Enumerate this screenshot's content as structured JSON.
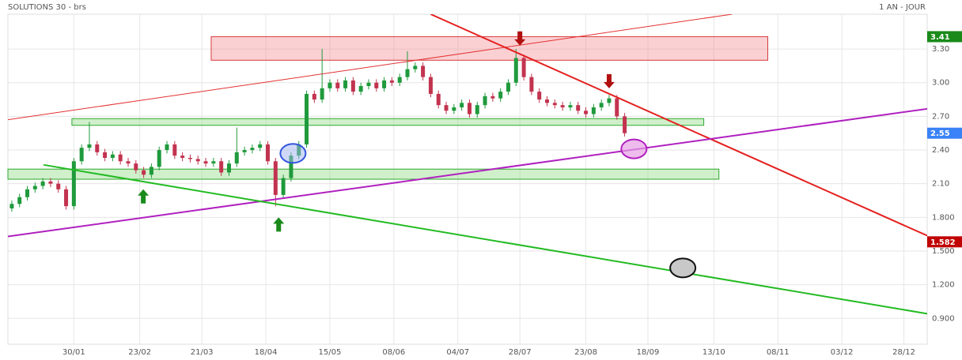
{
  "chart_data": {
    "type": "candlestick",
    "title": "SOLUTIONS 30 - brs",
    "period": "1 AN - JOUR",
    "grid": true,
    "colors": {
      "up": "#1f9a3c",
      "down": "#c2334f"
    },
    "xlim": [
      0,
      237
    ],
    "xticks": [
      {
        "value": 17,
        "label": "30/01"
      },
      {
        "value": 34,
        "label": "23/02"
      },
      {
        "value": 50,
        "label": "21/03"
      },
      {
        "value": 66.5,
        "label": "18/04"
      },
      {
        "value": 83,
        "label": "15/05"
      },
      {
        "value": 99.5,
        "label": "08/06"
      },
      {
        "value": 116,
        "label": "04/07"
      },
      {
        "value": 132,
        "label": "28/07"
      },
      {
        "value": 149,
        "label": "23/08"
      },
      {
        "value": 165,
        "label": "18/09"
      },
      {
        "value": 182,
        "label": "13/10"
      },
      {
        "value": 198.5,
        "label": "08/11"
      },
      {
        "value": 215,
        "label": "03/12"
      },
      {
        "value": 231,
        "label": "28/12"
      }
    ],
    "ylim": [
      0.67,
      3.61
    ],
    "yticks": [
      {
        "value": 3.3,
        "label": "3.30"
      },
      {
        "value": 3.0,
        "label": "3.00"
      },
      {
        "value": 2.7,
        "label": "2.70"
      },
      {
        "value": 2.4,
        "label": "2.40"
      },
      {
        "value": 2.1,
        "label": "2.10"
      },
      {
        "value": 1.8,
        "label": "1.800"
      },
      {
        "value": 1.5,
        "label": "1.500"
      },
      {
        "value": 1.2,
        "label": "1.200"
      },
      {
        "value": 0.9,
        "label": "0.900"
      }
    ],
    "x": [
      1,
      3,
      5,
      7,
      9,
      11,
      13,
      15,
      17,
      19,
      21,
      23,
      25,
      27,
      29,
      31,
      33,
      35,
      37,
      39,
      41,
      43,
      45,
      47,
      49,
      51,
      53,
      55,
      57,
      59,
      61,
      63,
      65,
      67,
      69,
      71,
      73,
      75,
      77,
      79,
      81,
      83,
      85,
      87,
      89,
      91,
      93,
      95,
      97,
      99,
      101,
      103,
      105,
      107,
      109,
      111,
      113,
      115,
      117,
      119,
      121,
      123,
      125,
      127,
      129,
      131,
      133,
      135,
      137,
      139,
      141,
      143,
      145,
      147,
      149,
      151,
      153,
      155,
      157,
      159
    ],
    "open": [
      1.88,
      1.92,
      1.98,
      2.05,
      2.08,
      2.12,
      2.1,
      2.05,
      1.9,
      2.3,
      2.42,
      2.45,
      2.38,
      2.33,
      2.36,
      2.3,
      2.28,
      2.22,
      2.18,
      2.25,
      2.4,
      2.45,
      2.35,
      2.33,
      2.32,
      2.3,
      2.28,
      2.3,
      2.2,
      2.28,
      2.38,
      2.4,
      2.42,
      2.45,
      2.3,
      2.0,
      2.15,
      2.35,
      2.45,
      2.9,
      2.85,
      2.95,
      3.0,
      2.95,
      3.02,
      2.92,
      2.97,
      3.0,
      2.95,
      3.02,
      3.0,
      3.05,
      3.12,
      3.15,
      3.05,
      2.9,
      2.8,
      2.75,
      2.78,
      2.82,
      2.72,
      2.8,
      2.88,
      2.86,
      2.92,
      3.0,
      3.22,
      3.05,
      2.92,
      2.85,
      2.82,
      2.8,
      2.78,
      2.8,
      2.75,
      2.72,
      2.78,
      2.82,
      2.86,
      2.7
    ],
    "high": [
      1.95,
      2.01,
      2.08,
      2.11,
      2.15,
      2.15,
      2.13,
      2.08,
      2.33,
      2.45,
      2.65,
      2.48,
      2.41,
      2.39,
      2.39,
      2.33,
      2.31,
      2.25,
      2.28,
      2.43,
      2.48,
      2.48,
      2.38,
      2.36,
      2.35,
      2.33,
      2.33,
      2.33,
      2.31,
      2.6,
      2.43,
      2.45,
      2.48,
      2.48,
      2.33,
      2.18,
      2.38,
      2.48,
      2.93,
      2.93,
      3.3,
      3.03,
      3.03,
      3.05,
      3.05,
      3.0,
      3.03,
      3.03,
      3.05,
      3.05,
      3.08,
      3.28,
      3.18,
      3.18,
      3.08,
      2.93,
      2.83,
      2.81,
      2.85,
      2.85,
      2.83,
      2.91,
      2.91,
      2.95,
      3.03,
      3.3,
      3.25,
      3.08,
      2.95,
      2.88,
      2.85,
      2.83,
      2.83,
      2.83,
      2.78,
      2.81,
      2.85,
      2.89,
      2.89,
      2.73
    ],
    "low": [
      1.85,
      1.89,
      1.95,
      2.02,
      2.05,
      2.07,
      2.02,
      1.87,
      1.87,
      2.27,
      2.39,
      2.35,
      2.3,
      2.3,
      2.27,
      2.25,
      2.19,
      2.15,
      2.15,
      2.22,
      2.37,
      2.32,
      2.3,
      2.29,
      2.27,
      2.25,
      2.25,
      2.17,
      2.17,
      2.25,
      2.35,
      2.37,
      2.39,
      2.27,
      1.9,
      1.97,
      2.12,
      2.32,
      2.42,
      2.82,
      2.82,
      2.92,
      2.92,
      2.92,
      2.89,
      2.89,
      2.94,
      2.92,
      2.92,
      2.97,
      2.97,
      3.02,
      3.09,
      3.02,
      2.87,
      2.77,
      2.72,
      2.72,
      2.75,
      2.69,
      2.69,
      2.77,
      2.83,
      2.83,
      2.89,
      2.97,
      3.02,
      2.89,
      2.82,
      2.79,
      2.77,
      2.75,
      2.75,
      2.72,
      2.69,
      2.69,
      2.75,
      2.79,
      2.67,
      2.52
    ],
    "close": [
      1.92,
      1.98,
      2.05,
      2.08,
      2.12,
      2.1,
      2.05,
      1.9,
      2.3,
      2.42,
      2.45,
      2.38,
      2.33,
      2.36,
      2.3,
      2.28,
      2.22,
      2.18,
      2.25,
      2.4,
      2.45,
      2.35,
      2.33,
      2.32,
      2.3,
      2.28,
      2.3,
      2.2,
      2.28,
      2.38,
      2.4,
      2.42,
      2.45,
      2.3,
      2.0,
      2.15,
      2.35,
      2.45,
      2.9,
      2.85,
      2.95,
      3.0,
      2.95,
      3.02,
      2.92,
      2.97,
      3.0,
      2.95,
      3.02,
      3.0,
      3.05,
      3.12,
      3.15,
      3.05,
      2.9,
      2.8,
      2.75,
      2.78,
      2.82,
      2.72,
      2.8,
      2.88,
      2.86,
      2.92,
      3.0,
      3.22,
      3.05,
      2.92,
      2.85,
      2.82,
      2.8,
      2.78,
      2.8,
      2.75,
      2.72,
      2.78,
      2.82,
      2.86,
      2.7,
      2.55
    ],
    "price_markers": [
      {
        "value": 3.41,
        "color": "#1a8a1a"
      },
      {
        "value": 2.55,
        "color": "#3b82f6"
      },
      {
        "value": 1.582,
        "color": "#c00000"
      }
    ],
    "zones": [
      {
        "x": [
          52.4,
          195.9
        ],
        "y": [
          3.2,
          3.41
        ],
        "fill": "rgba(240,120,130,0.35)",
        "stroke": "#d63a3a"
      },
      {
        "x": [
          16.5,
          179.4
        ],
        "y": [
          2.62,
          2.68
        ],
        "fill": "rgba(150,220,140,0.45)",
        "stroke": "#2eaa2e"
      },
      {
        "x": [
          0,
          183.3
        ],
        "y": [
          2.14,
          2.23
        ],
        "fill": "rgba(150,220,140,0.45)",
        "stroke": "#2eaa2e"
      }
    ],
    "trendlines": [
      {
        "x": [
          0,
          186.7
        ],
        "y": [
          2.67,
          3.61
        ],
        "color": "#e43030",
        "width": 1
      },
      {
        "x": [
          109,
          237
        ],
        "y": [
          3.61,
          1.637
        ],
        "color": "#e42020",
        "width": 2
      },
      {
        "x": [
          0,
          237
        ],
        "y": [
          1.63,
          2.767
        ],
        "color": "#b020c0",
        "width": 2
      },
      {
        "x": [
          9.2,
          237
        ],
        "y": [
          2.268,
          0.942
        ],
        "color": "#22bb22",
        "width": 2
      }
    ],
    "arrows": [
      {
        "x": 34.9,
        "y": 2.05,
        "dir": "up",
        "color": "#1a8a1a"
      },
      {
        "x": 69.8,
        "y": 1.8,
        "dir": "up",
        "color": "#1a8a1a"
      },
      {
        "x": 132,
        "y": 3.33,
        "dir": "down",
        "color": "#b01010"
      },
      {
        "x": 155,
        "y": 2.95,
        "dir": "down",
        "color": "#b01010"
      }
    ],
    "ellipses": [
      {
        "x": 73.5,
        "y": 2.37,
        "fill": "rgba(160,180,240,0.5)",
        "stroke": "#3355dd"
      },
      {
        "x": 161.4,
        "y": 2.41,
        "fill": "rgba(230,160,230,0.7)",
        "stroke": "#b020c0"
      },
      {
        "x": 174,
        "y": 1.35,
        "fill": "#c8c8c8",
        "stroke": "#111"
      }
    ]
  }
}
